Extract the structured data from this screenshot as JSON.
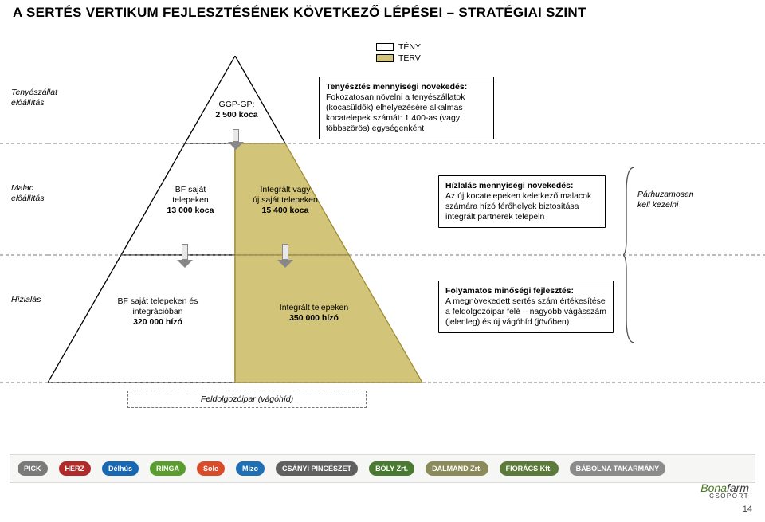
{
  "title": "A SERTÉS VERTIKUM FEJLESZTÉSÉNEK KÖVETKEZŐ LÉPÉSEI – STRATÉGIAI SZINT",
  "legend": {
    "fact_label": "TÉNY",
    "plan_label": "TERV"
  },
  "colors": {
    "plan_fill": "#d2c57a",
    "plan_edge": "#9e8d33",
    "fact_fill": "#ffffff",
    "border": "#000000",
    "dash": "#787878",
    "footer_bg": "#f6f6f4"
  },
  "rows": {
    "r1": {
      "label": "Tenyészállat\nelőállítás"
    },
    "r2": {
      "label": "Malac\nelőállítás"
    },
    "r3": {
      "label": "Hízlalás"
    }
  },
  "apex": {
    "line1": "GGP-GP:",
    "line2": "2 500 koca"
  },
  "mid_left": {
    "line1": "BF saját",
    "line2": "telepeken",
    "line3": "13 000 koca"
  },
  "mid_right": {
    "line1": "Integrált vagy",
    "line2": "új saját telepeken",
    "line3": "15 400 koca"
  },
  "bot_left": {
    "line1": "BF saját telepeken és",
    "line2": "integrációban",
    "line3": "320 000 hízó"
  },
  "bot_right": {
    "line1": "Integrált telepeken",
    "line2": "350 000 hízó"
  },
  "note1": {
    "head": "Tenyésztés mennyiségi növekedés:",
    "body": "Fokozatosan növelni a tenyészállatok (kocasüldők) elhelyezésére alkalmas kocatelepek számát: 1 400-as (vagy többszörös) egységenként"
  },
  "note2": {
    "head": "Hízlalás mennyiségi növekedés:",
    "body": "Az új kocatelepeken keletkező malacok számára hízó férőhelyek biztosítása integrált partnerek telepein"
  },
  "note3": {
    "head": "Folyamatos minőségi fejlesztés:",
    "body": "A megnövekedett sertés szám értékesítése a feldolgozóipar felé – nagyobb vágásszám (jelenleg) és új vágóhíd (jövőben)"
  },
  "side_note": "Párhuzamosan\nkell kezelni",
  "base_label": "Feldolgozóipar (vágóhíd)",
  "brands": [
    {
      "name": "PICK",
      "bg": "#7a7a7a"
    },
    {
      "name": "HERZ",
      "bg": "#b02a2a"
    },
    {
      "name": "Délhús",
      "bg": "#1767b3"
    },
    {
      "name": "RINGA",
      "bg": "#5a9c2e"
    },
    {
      "name": "Sole",
      "bg": "#d94c2a"
    },
    {
      "name": "Mizo",
      "bg": "#1f6fb5"
    },
    {
      "name": "CSÁNYI PINCÉSZET",
      "bg": "#606060"
    },
    {
      "name": "BÓLY Zrt.",
      "bg": "#4a7a31"
    },
    {
      "name": "DALMAND Zrt.",
      "bg": "#8a8a5a"
    },
    {
      "name": "FIORÁCS Kft.",
      "bg": "#5c7a3a"
    },
    {
      "name": "BÁBOLNA TAKARMÁNY",
      "bg": "#8b8b8b"
    }
  ],
  "corp": {
    "name": "Bonafarm",
    "suffix": "CSOPORT"
  },
  "page": "14"
}
